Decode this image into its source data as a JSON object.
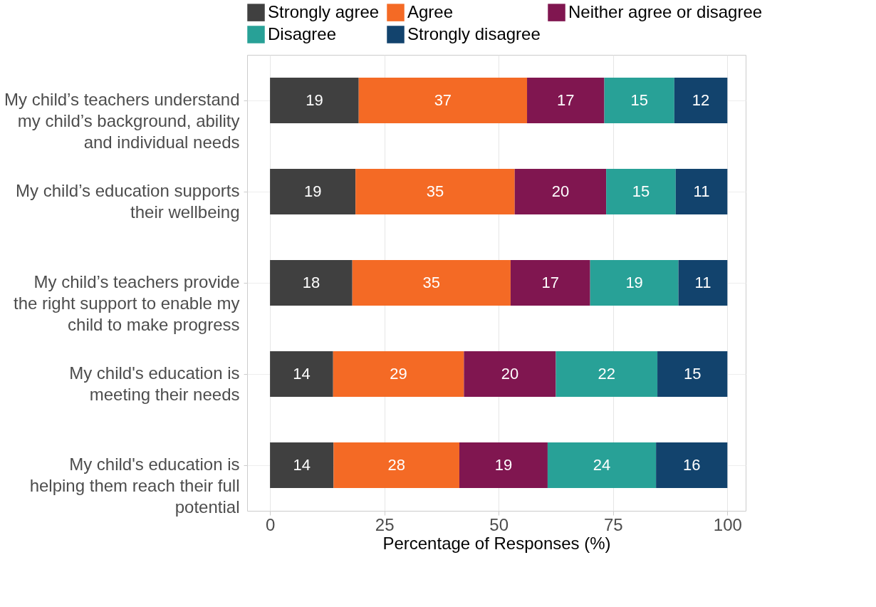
{
  "chart_data": {
    "type": "bar",
    "orientation": "horizontal",
    "stacked": true,
    "xlabel": "Percentage of Responses (%)",
    "categories": [
      "My child’s teachers understand my child’s background, ability and individual needs",
      "My child’s education supports their wellbeing",
      "My child’s teachers provide the right support to enable my child to make progress",
      "My child's education is meeting their needs",
      "My child's education is helping them reach their full potential"
    ],
    "series": [
      {
        "name": "Strongly agree",
        "color": "#404040",
        "values": [
          19.4,
          18.7,
          18.0,
          13.8,
          13.9
        ],
        "value_labels": [
          "19",
          "19",
          "18",
          "14",
          "14"
        ]
      },
      {
        "name": "Agree",
        "color": "#f46a25",
        "values": [
          36.8,
          34.8,
          34.6,
          28.6,
          27.5
        ],
        "value_labels": [
          "37",
          "35",
          "35",
          "29",
          "28"
        ]
      },
      {
        "name": "Neither agree or disagree",
        "color": "#801650",
        "values": [
          16.9,
          20.0,
          17.4,
          20.1,
          19.3
        ],
        "value_labels": [
          "17",
          "20",
          "17",
          "20",
          "19"
        ]
      },
      {
        "name": "Disagree",
        "color": "#28a197",
        "values": [
          15.3,
          15.2,
          19.3,
          22.2,
          23.7
        ],
        "value_labels": [
          "15",
          "15",
          "19",
          "22",
          "24"
        ]
      },
      {
        "name": "Strongly disagree",
        "color": "#12436d",
        "values": [
          11.6,
          11.3,
          10.7,
          15.3,
          15.6
        ],
        "value_labels": [
          "12",
          "11",
          "11",
          "15",
          "16"
        ]
      }
    ],
    "xlim": [
      -5,
      104
    ],
    "xticks": [
      0,
      25,
      50,
      75,
      100
    ],
    "grid": true,
    "legend": "top"
  }
}
